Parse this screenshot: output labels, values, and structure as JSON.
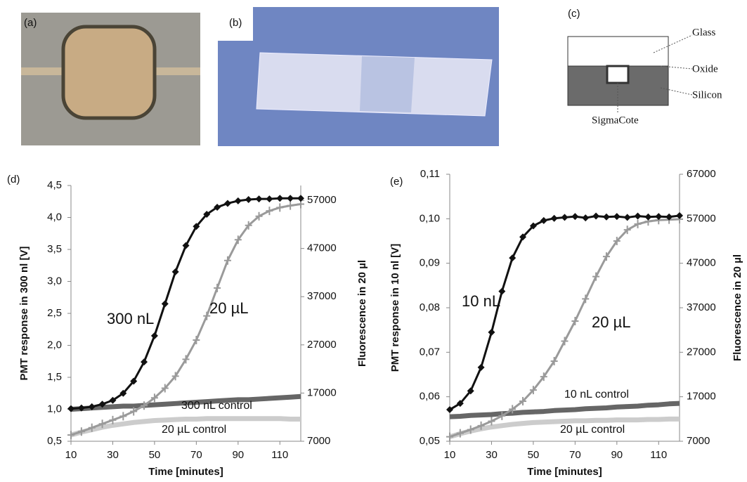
{
  "panels": [
    {
      "label": "(a)"
    },
    {
      "label": "(b)"
    },
    {
      "label": "(c)",
      "labels": [
        "Glass",
        "Oxide",
        "Silicon",
        "SigmaCote"
      ]
    }
  ],
  "chart_data": [
    {
      "type": "line",
      "label": "(d)",
      "xlabel": "Time [minutes]",
      "ylabel": "PMT response in 300 nl [V]",
      "y2label": "Fluorescence in 20 µl",
      "x": [
        10,
        15,
        20,
        25,
        30,
        35,
        40,
        45,
        50,
        55,
        60,
        65,
        70,
        75,
        80,
        85,
        90,
        95,
        100,
        105,
        110,
        115,
        120
      ],
      "xlim": [
        10,
        120
      ],
      "xticks": [
        10,
        30,
        50,
        70,
        90,
        110
      ],
      "ylim": [
        0.5,
        4.5
      ],
      "yticks": [
        {
          "value": 0.5,
          "label": "0,5"
        },
        {
          "value": 1.0,
          "label": "1,0"
        },
        {
          "value": 1.5,
          "label": "1,5"
        },
        {
          "value": 2.0,
          "label": "2,0"
        },
        {
          "value": 2.5,
          "label": "2,5"
        },
        {
          "value": 3.0,
          "label": "3,0"
        },
        {
          "value": 3.5,
          "label": "3,5"
        },
        {
          "value": 4.0,
          "label": "4,0"
        },
        {
          "value": 4.5,
          "label": "4,5"
        }
      ],
      "y2lim": [
        7000,
        60070
      ],
      "y2ticks": [
        7000,
        17000,
        27000,
        37000,
        47000,
        57000
      ],
      "series": [
        {
          "name": "300 nL",
          "color": "#111111",
          "marker": "diamond",
          "values": [
            1.01,
            1.02,
            1.04,
            1.08,
            1.14,
            1.25,
            1.44,
            1.74,
            2.15,
            2.65,
            3.15,
            3.56,
            3.86,
            4.05,
            4.16,
            4.22,
            4.26,
            4.28,
            4.29,
            4.29,
            4.3,
            4.3,
            4.3
          ]
        },
        {
          "name": "20 µL",
          "color": "#9a9a9a",
          "marker": "plus",
          "axis": "y2",
          "values": [
            8300,
            9000,
            9800,
            10600,
            11400,
            12200,
            13200,
            14400,
            16000,
            18000,
            20500,
            24000,
            28000,
            33000,
            38800,
            44500,
            48800,
            51800,
            53700,
            54800,
            55500,
            55900,
            56200
          ]
        },
        {
          "name": "300 nL control",
          "color": "#666666",
          "marker": "line",
          "values": [
            1.0,
            1.01,
            1.02,
            1.03,
            1.04,
            1.05,
            1.05,
            1.06,
            1.07,
            1.08,
            1.09,
            1.1,
            1.11,
            1.12,
            1.13,
            1.14,
            1.15,
            1.15,
            1.16,
            1.17,
            1.18,
            1.19,
            1.2
          ]
        },
        {
          "name": "20 µL control",
          "color": "#cccccc",
          "marker": "line",
          "axis": "y2",
          "values": [
            8300,
            8900,
            9400,
            9900,
            10300,
            10600,
            10900,
            11100,
            11300,
            11400,
            11500,
            11600,
            11600,
            11700,
            11700,
            11700,
            11700,
            11700,
            11700,
            11700,
            11700,
            11600,
            11600
          ]
        }
      ]
    },
    {
      "type": "line",
      "label": "(e)",
      "xlabel": "Time [minutes]",
      "ylabel": "PMT response in 10 nl [V]",
      "y2label": "Fluorescence in 20 µl",
      "x": [
        10,
        15,
        20,
        25,
        30,
        35,
        40,
        45,
        50,
        55,
        60,
        65,
        70,
        75,
        80,
        85,
        90,
        95,
        100,
        105,
        110,
        115,
        120
      ],
      "xlim": [
        10,
        120
      ],
      "xticks": [
        10,
        30,
        50,
        70,
        90,
        110
      ],
      "ylim": [
        0.05,
        0.11
      ],
      "yticks": [
        {
          "value": 0.05,
          "label": "0,05"
        },
        {
          "value": 0.06,
          "label": "0,06"
        },
        {
          "value": 0.07,
          "label": "0,07"
        },
        {
          "value": 0.08,
          "label": "0,08"
        },
        {
          "value": 0.09,
          "label": "0,09"
        },
        {
          "value": 0.1,
          "label": "0,10"
        },
        {
          "value": 0.11,
          "label": "0,11"
        }
      ],
      "y2lim": [
        7000,
        67000
      ],
      "y2ticks": [
        7000,
        17000,
        27000,
        37000,
        47000,
        57000,
        67000
      ],
      "series": [
        {
          "name": "10 nL",
          "color": "#111111",
          "marker": "diamond",
          "values": [
            0.0571,
            0.0585,
            0.0613,
            0.0666,
            0.0745,
            0.0837,
            0.0912,
            0.0959,
            0.0984,
            0.0996,
            0.1001,
            0.1003,
            0.1005,
            0.1002,
            0.1006,
            0.1004,
            0.1005,
            0.1003,
            0.1006,
            0.1004,
            0.1005,
            0.1004,
            0.1007
          ]
        },
        {
          "name": "20 µL",
          "color": "#9a9a9a",
          "marker": "plus",
          "axis": "y2",
          "values": [
            8000,
            8800,
            9600,
            10500,
            11500,
            12700,
            14200,
            16000,
            18500,
            21500,
            25000,
            29500,
            34000,
            39000,
            44000,
            48500,
            52000,
            54500,
            55800,
            56400,
            56700,
            56800,
            56900
          ]
        },
        {
          "name": "10 nL control",
          "color": "#666666",
          "marker": "line",
          "values": [
            0.0555,
            0.0556,
            0.0558,
            0.0559,
            0.056,
            0.0562,
            0.0563,
            0.0565,
            0.0566,
            0.0567,
            0.0569,
            0.057,
            0.0571,
            0.0573,
            0.0574,
            0.0575,
            0.0577,
            0.0578,
            0.0579,
            0.0581,
            0.0582,
            0.0584,
            0.0585
          ]
        },
        {
          "name": "20 µL control",
          "color": "#cccccc",
          "marker": "line",
          "axis": "y2",
          "values": [
            8000,
            8700,
            9300,
            9800,
            10200,
            10500,
            10800,
            11000,
            11200,
            11300,
            11400,
            11500,
            11600,
            11600,
            11700,
            11700,
            11800,
            11800,
            11800,
            11900,
            11900,
            12000,
            12000
          ]
        }
      ]
    }
  ]
}
